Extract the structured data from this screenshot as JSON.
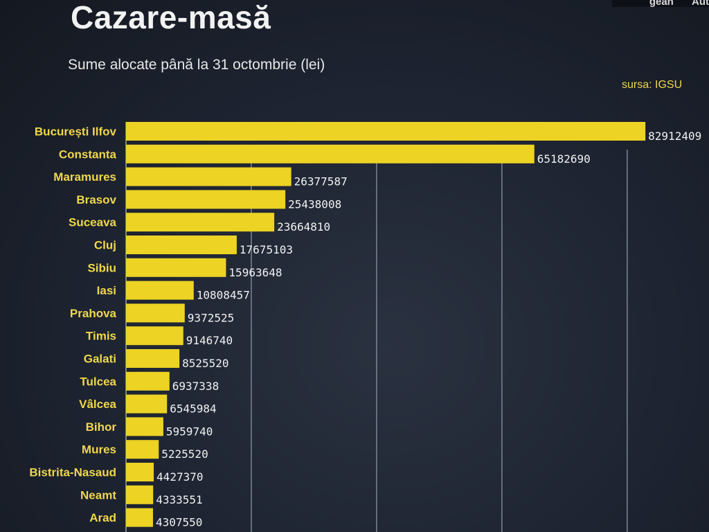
{
  "header": {
    "title": "Cazare-masă",
    "subtitle": "Sume alocate până la 31 octombrie (lei)",
    "source": "sursa: IGSU",
    "nav": [
      "gean",
      "Aut"
    ]
  },
  "chart_data": {
    "type": "bar",
    "orientation": "horizontal",
    "title": "Cazare-masă",
    "subtitle": "Sume alocate până la 31 octombrie (lei)",
    "xlim": [
      0,
      84000000
    ],
    "grid": true,
    "bar_color": "#ecd324",
    "categories": [
      "București Ilfov",
      "Constanta",
      "Maramures",
      "Brasov",
      "Suceava",
      "Cluj",
      "Sibiu",
      "Iasi",
      "Prahova",
      "Timis",
      "Galati",
      "Tulcea",
      "Vâlcea",
      "Bihor",
      "Mures",
      "Bistrita-Nasaud",
      "Neamt",
      "Arad"
    ],
    "values": [
      82912409,
      65182690,
      26377587,
      25438008,
      23664810,
      17675103,
      15963648,
      10808457,
      9372525,
      9146740,
      8525520,
      6937338,
      6545984,
      5959740,
      5225520,
      4427370,
      4333551,
      4307550
    ],
    "value_labels": [
      "82912409",
      "65182690",
      "26377587",
      "25438008",
      "23664810",
      "17675103",
      "15963648",
      "10808457",
      "9372525",
      "9146740",
      "8525520",
      "6937338",
      "6545984",
      "5959740",
      "5225520",
      "4427370",
      "4333551",
      "4307550"
    ]
  }
}
